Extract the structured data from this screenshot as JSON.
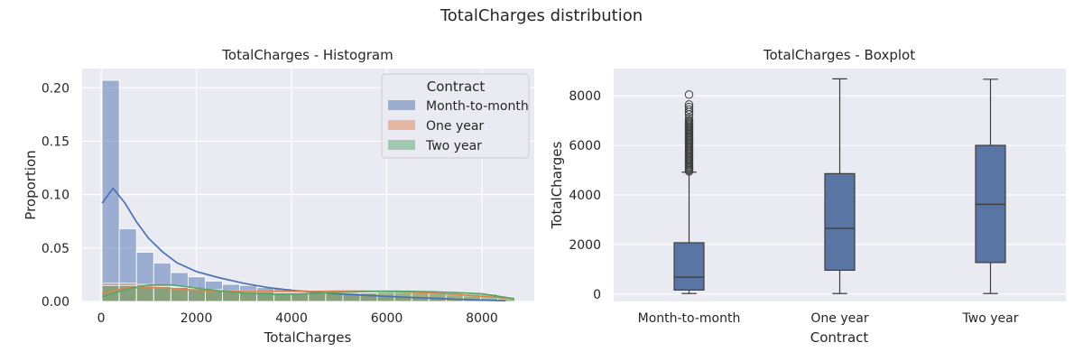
{
  "figure": {
    "title": "TotalCharges distribution"
  },
  "colors": {
    "Month-to-month": "#4c72b0",
    "One year": "#dd8452",
    "Two year": "#55a868",
    "box": "#5975a4",
    "axes_bg": "#eaeaf2",
    "grid": "#ffffff"
  },
  "chart_data": [
    {
      "type": "histogram",
      "title": "TotalCharges - Histogram",
      "xlabel": "TotalCharges",
      "ylabel": "Proportion",
      "xlim": [
        -400,
        9100
      ],
      "ylim": [
        0,
        0.218
      ],
      "xticks": [
        0,
        2000,
        4000,
        6000,
        8000
      ],
      "yticks": [
        0.0,
        0.05,
        0.1,
        0.15,
        0.2
      ],
      "ytick_labels": [
        "0.00",
        "0.05",
        "0.10",
        "0.15",
        "0.20"
      ],
      "grid": true,
      "legend": {
        "title": "Contract",
        "entries": [
          "Month-to-month",
          "One year",
          "Two year"
        ],
        "placement": "top-right"
      },
      "bins": {
        "start": 18.8,
        "width": 361.4,
        "count": 24
      },
      "series": [
        {
          "name": "Month-to-month",
          "heights": [
            0.207,
            0.068,
            0.046,
            0.036,
            0.027,
            0.023,
            0.019,
            0.016,
            0.015,
            0.013,
            0.012,
            0.011,
            0.01,
            0.008,
            0.007,
            0.007,
            0.006,
            0.005,
            0.004,
            0.004,
            0.003,
            0.002,
            0.001,
            0.0005
          ],
          "kde": [
            [
              18.8,
              0.092
            ],
            [
              250,
              0.106
            ],
            [
              500,
              0.092
            ],
            [
              750,
              0.074
            ],
            [
              1000,
              0.059
            ],
            [
              1300,
              0.046
            ],
            [
              1600,
              0.036
            ],
            [
              2000,
              0.028
            ],
            [
              2500,
              0.022
            ],
            [
              3000,
              0.017
            ],
            [
              3500,
              0.013
            ],
            [
              4000,
              0.0105
            ],
            [
              4500,
              0.0085
            ],
            [
              5000,
              0.007
            ],
            [
              5500,
              0.0058
            ],
            [
              6000,
              0.0048
            ],
            [
              6500,
              0.0038
            ],
            [
              7000,
              0.003
            ],
            [
              7500,
              0.002
            ],
            [
              8000,
              0.0013
            ],
            [
              8500,
              0.0006
            ]
          ]
        },
        {
          "name": "One year",
          "heights": [
            0.017,
            0.017,
            0.016,
            0.015,
            0.014,
            0.012,
            0.011,
            0.01,
            0.01,
            0.009,
            0.009,
            0.009,
            0.009,
            0.008,
            0.008,
            0.008,
            0.008,
            0.008,
            0.008,
            0.007,
            0.006,
            0.005,
            0.003,
            0.002
          ],
          "kde": [
            [
              18.8,
              0.007
            ],
            [
              500,
              0.0125
            ],
            [
              1000,
              0.0135
            ],
            [
              1500,
              0.012
            ],
            [
              2000,
              0.0105
            ],
            [
              2500,
              0.0098
            ],
            [
              3000,
              0.0095
            ],
            [
              3500,
              0.0095
            ],
            [
              4000,
              0.0095
            ],
            [
              4500,
              0.0095
            ],
            [
              5000,
              0.0096
            ],
            [
              5500,
              0.0096
            ],
            [
              6000,
              0.0095
            ],
            [
              6500,
              0.0088
            ],
            [
              7000,
              0.0078
            ],
            [
              7500,
              0.0065
            ],
            [
              8000,
              0.0048
            ],
            [
              8684.8,
              0.0025
            ]
          ]
        },
        {
          "name": "Two year",
          "heights": [
            0.015,
            0.015,
            0.014,
            0.014,
            0.013,
            0.012,
            0.011,
            0.01,
            0.009,
            0.009,
            0.008,
            0.008,
            0.008,
            0.008,
            0.008,
            0.008,
            0.009,
            0.009,
            0.009,
            0.008,
            0.008,
            0.007,
            0.007,
            0.004
          ],
          "kde": [
            [
              18.8,
              0.0045
            ],
            [
              500,
              0.011
            ],
            [
              1000,
              0.0155
            ],
            [
              1500,
              0.0155
            ],
            [
              2000,
              0.0125
            ],
            [
              2500,
              0.0098
            ],
            [
              3000,
              0.0078
            ],
            [
              3500,
              0.0068
            ],
            [
              4000,
              0.0068
            ],
            [
              4500,
              0.0075
            ],
            [
              5000,
              0.0085
            ],
            [
              5500,
              0.0092
            ],
            [
              6000,
              0.0096
            ],
            [
              6500,
              0.0095
            ],
            [
              7000,
              0.009
            ],
            [
              7500,
              0.0082
            ],
            [
              8000,
              0.0072
            ],
            [
              8684.8,
              0.0025
            ]
          ]
        }
      ]
    },
    {
      "type": "box",
      "title": "TotalCharges - Boxplot",
      "xlabel": "Contract",
      "ylabel": "TotalCharges",
      "categories": [
        "Month-to-month",
        "One year",
        "Two year"
      ],
      "ylim": [
        -300,
        9100
      ],
      "yticks": [
        0,
        2000,
        4000,
        6000,
        8000
      ],
      "grid": true,
      "boxes": [
        {
          "category": "Month-to-month",
          "whisker_low": 18.8,
          "q1": 160,
          "median": 680,
          "q3": 2070,
          "whisker_high": 4920,
          "outliers": [
            4950,
            5000,
            5050,
            5100,
            5150,
            5200,
            5250,
            5300,
            5350,
            5400,
            5450,
            5500,
            5550,
            5600,
            5650,
            5700,
            5750,
            5800,
            5850,
            5900,
            5950,
            6000,
            6050,
            6100,
            6150,
            6200,
            6250,
            6300,
            6350,
            6400,
            6450,
            6500,
            6550,
            6600,
            6650,
            6700,
            6750,
            6800,
            6850,
            6900,
            6950,
            7000,
            7100,
            7250,
            7350,
            7450,
            7550,
            7650,
            8050
          ]
        },
        {
          "category": "One year",
          "whisker_low": 18.8,
          "q1": 960,
          "median": 2650,
          "q3": 4860,
          "whisker_high": 8684.8,
          "outliers": []
        },
        {
          "category": "Two year",
          "whisker_low": 18.8,
          "q1": 1270,
          "median": 3620,
          "q3": 6000,
          "whisker_high": 8670,
          "outliers": []
        }
      ]
    }
  ]
}
